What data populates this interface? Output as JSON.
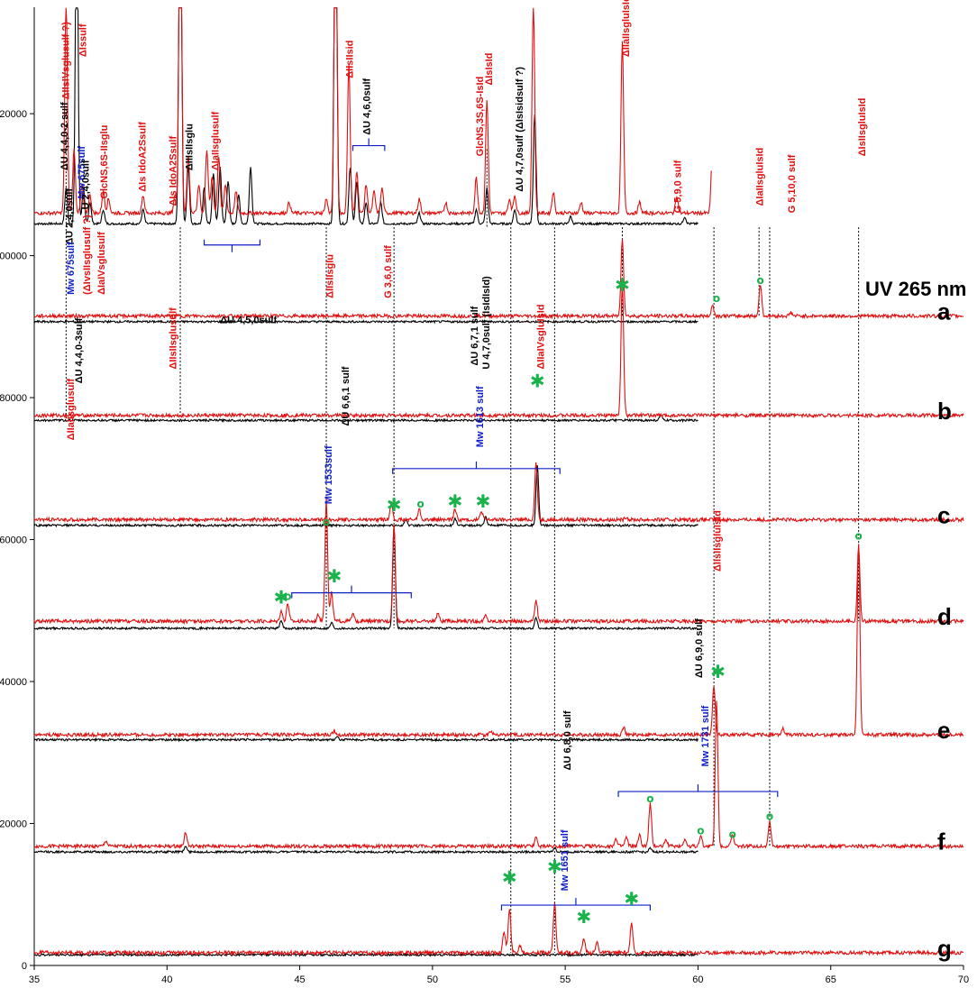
{
  "chart_data": {
    "type": "line",
    "xlim": [
      35,
      70
    ],
    "ylim": [
      0,
      135000
    ],
    "x_ticks": [
      35,
      40,
      45,
      50,
      55,
      60,
      65,
      70
    ],
    "y_ticks": [
      0,
      20000,
      40000,
      60000,
      80000,
      100000,
      120000
    ],
    "x_tick_labels": [
      "35",
      "40",
      "45",
      "50",
      "55",
      "60",
      "65",
      "70"
    ],
    "y_tick_labels": [
      "0",
      "20000",
      "40000",
      "60000",
      "80000",
      "100000",
      "120000"
    ],
    "uv_label": "UV 265 nm",
    "colors": {
      "red_trace": "#e01010",
      "black_trace": "#000000",
      "blue_annotation": "#1020c8",
      "marker": "#19b24b"
    },
    "traces": [
      {
        "label": "",
        "red_baseline": 106000,
        "black_baseline": 104500,
        "red_end": 60.5,
        "black_end": 60.0,
        "red_peaks": [
          [
            36.2,
            30000
          ],
          [
            36.5,
            9000
          ],
          [
            36.8,
            4000
          ],
          [
            37.1,
            2500
          ],
          [
            37.6,
            3000
          ],
          [
            37.8,
            2000
          ],
          [
            39.1,
            2500
          ],
          [
            40.3,
            2500
          ],
          [
            40.5,
            60000
          ],
          [
            40.8,
            8000
          ],
          [
            41.2,
            4000
          ],
          [
            41.5,
            9000
          ],
          [
            41.7,
            5000
          ],
          [
            41.95,
            8000
          ],
          [
            42.2,
            4000
          ],
          [
            42.6,
            3000
          ],
          [
            44.6,
            1500
          ],
          [
            46.0,
            2000
          ],
          [
            46.35,
            60000
          ],
          [
            46.85,
            21000
          ],
          [
            47.15,
            6000
          ],
          [
            47.5,
            4000
          ],
          [
            47.8,
            3000
          ],
          [
            48.1,
            3500
          ],
          [
            49.5,
            2000
          ],
          [
            50.5,
            1500
          ],
          [
            51.65,
            5000
          ],
          [
            52.05,
            16000
          ],
          [
            52.9,
            2000
          ],
          [
            53.1,
            2500
          ],
          [
            53.8,
            30000
          ],
          [
            54.55,
            3000
          ],
          [
            55.6,
            1500
          ],
          [
            57.15,
            24000
          ],
          [
            57.8,
            1500
          ],
          [
            59.2,
            2500
          ],
          [
            60.55,
            5000
          ]
        ],
        "black_peaks": [
          [
            36.2,
            5000
          ],
          [
            36.6,
            50000
          ],
          [
            36.85,
            5000
          ],
          [
            37.1,
            3000
          ],
          [
            37.6,
            2000
          ],
          [
            39.1,
            2000
          ],
          [
            40.5,
            60000
          ],
          [
            40.8,
            8000
          ],
          [
            41.4,
            5000
          ],
          [
            41.75,
            7000
          ],
          [
            42.0,
            8000
          ],
          [
            42.3,
            6000
          ],
          [
            42.7,
            4000
          ],
          [
            43.15,
            8000
          ],
          [
            46.35,
            60000
          ],
          [
            46.9,
            8000
          ],
          [
            47.15,
            6000
          ],
          [
            47.5,
            3000
          ],
          [
            48.05,
            3000
          ],
          [
            49.5,
            1500
          ],
          [
            51.65,
            2000
          ],
          [
            52.05,
            5000
          ],
          [
            53.1,
            2000
          ],
          [
            53.85,
            15500
          ],
          [
            55.2,
            1000
          ],
          [
            59.5,
            1000
          ]
        ],
        "tail_peaks": [
          [
            60.55,
            5000
          ],
          [
            62.3,
            1500
          ],
          [
            62.6,
            2000
          ],
          [
            63.5,
            1200
          ],
          [
            66.05,
            7500
          ],
          [
            69.0,
            1000
          ]
        ]
      },
      {
        "label": "a",
        "red_baseline": 91500,
        "black_baseline": 90700,
        "red_end": 70,
        "black_end": 60.0,
        "red_peaks": [
          [
            57.15,
            11000
          ],
          [
            60.55,
            1500
          ],
          [
            62.35,
            4500
          ],
          [
            63.5,
            500
          ]
        ],
        "black_peaks": []
      },
      {
        "label": "b",
        "red_baseline": 77500,
        "black_baseline": 76800,
        "red_end": 70,
        "black_end": 60.0,
        "red_peaks": [
          [
            57.15,
            18500
          ]
        ],
        "black_peaks": [
          [
            58.6,
            700
          ]
        ]
      },
      {
        "label": "c",
        "red_baseline": 62800,
        "black_baseline": 62000,
        "red_end": 70,
        "black_end": 60.0,
        "red_peaks": [
          [
            48.45,
            2500
          ],
          [
            49.5,
            1500
          ],
          [
            50.85,
            1500
          ],
          [
            51.85,
            1200
          ],
          [
            53.9,
            8000
          ],
          [
            57.3,
            400
          ]
        ],
        "black_peaks": [
          [
            49.0,
            800
          ],
          [
            50.85,
            900
          ],
          [
            52.0,
            1200
          ],
          [
            53.95,
            8500
          ]
        ]
      },
      {
        "label": "d",
        "red_baseline": 48500,
        "black_baseline": 47500,
        "red_end": 70,
        "black_end": 60.0,
        "red_peaks": [
          [
            44.3,
            1500
          ],
          [
            44.55,
            2500
          ],
          [
            45.7,
            1000
          ],
          [
            46.0,
            17000
          ],
          [
            46.2,
            4000
          ],
          [
            47.0,
            1000
          ],
          [
            48.55,
            13500
          ],
          [
            50.2,
            1200
          ],
          [
            52.0,
            800
          ],
          [
            53.9,
            3000
          ],
          [
            66.05,
            10500
          ]
        ],
        "black_peaks": [
          [
            44.3,
            1000
          ],
          [
            46.2,
            800
          ],
          [
            48.55,
            14500
          ],
          [
            53.9,
            1500
          ]
        ]
      },
      {
        "label": "e",
        "red_baseline": 32500,
        "black_baseline": 31800,
        "red_end": 70,
        "black_end": 60.0,
        "red_peaks": [
          [
            46.3,
            600
          ],
          [
            52.2,
            600
          ],
          [
            57.2,
            1000
          ],
          [
            60.6,
            7000
          ],
          [
            63.2,
            800
          ],
          [
            66.05,
            27000
          ]
        ],
        "black_peaks": [
          [
            46.4,
            500
          ]
        ]
      },
      {
        "label": "f",
        "red_baseline": 16800,
        "black_baseline": 16000,
        "red_end": 70,
        "black_end": 60.0,
        "red_peaks": [
          [
            37.7,
            800
          ],
          [
            40.7,
            2000
          ],
          [
            53.9,
            1200
          ],
          [
            56.9,
            1000
          ],
          [
            57.3,
            1200
          ],
          [
            57.8,
            1500
          ],
          [
            58.2,
            6000
          ],
          [
            58.8,
            1000
          ],
          [
            59.5,
            1000
          ],
          [
            60.1,
            1500
          ],
          [
            60.7,
            20500
          ],
          [
            61.3,
            1500
          ],
          [
            62.7,
            3500
          ]
        ],
        "black_peaks": [
          [
            40.7,
            800
          ],
          [
            54.6,
            600
          ],
          [
            58.2,
            500
          ]
        ]
      },
      {
        "label": "g",
        "red_baseline": 1800,
        "black_baseline": 1500,
        "red_end": 70,
        "black_end": 60.0,
        "red_peaks": [
          [
            52.7,
            3000
          ],
          [
            52.9,
            6000
          ],
          [
            53.3,
            1000
          ],
          [
            54.6,
            7000
          ],
          [
            55.7,
            2000
          ],
          [
            56.2,
            1500
          ],
          [
            57.5,
            4000
          ]
        ],
        "black_peaks": []
      }
    ],
    "dashed_lines": [
      {
        "x": 36.2,
        "y_top": 120000,
        "y_bottom": 77000
      },
      {
        "x": 40.5,
        "y_top": 104000,
        "y_bottom": 77000
      },
      {
        "x": 46.0,
        "y_top": 104000,
        "y_bottom": 47500
      },
      {
        "x": 48.55,
        "y_top": 104000,
        "y_bottom": 47500
      },
      {
        "x": 52.05,
        "y_top": 115000,
        "y_bottom": 104000
      },
      {
        "x": 52.95,
        "y_top": 104000,
        "y_bottom": 1800
      },
      {
        "x": 54.6,
        "y_top": 104000,
        "y_bottom": 1800
      },
      {
        "x": 57.15,
        "y_top": 104000,
        "y_bottom": 91500
      },
      {
        "x": 60.6,
        "y_top": 104000,
        "y_bottom": 16800
      },
      {
        "x": 62.3,
        "y_top": 104000,
        "y_bottom": 91500
      },
      {
        "x": 62.7,
        "y_top": 104000,
        "y_bottom": 16800
      },
      {
        "x": 66.05,
        "y_top": 104000,
        "y_bottom": 48500
      }
    ],
    "brackets": [
      {
        "x1": 41.4,
        "x2": 43.5,
        "y": 101500,
        "dir": "down"
      },
      {
        "x1": 47.0,
        "x2": 48.2,
        "y": 115500,
        "dir": "up"
      },
      {
        "x1": 48.5,
        "x2": 54.8,
        "y": 70000,
        "dir": "up"
      },
      {
        "x1": 44.7,
        "x2": 49.2,
        "y": 52500,
        "dir": "up"
      },
      {
        "x1": 57.0,
        "x2": 63.0,
        "y": 24500,
        "dir": "up"
      },
      {
        "x1": 52.6,
        "x2": 58.2,
        "y": 8500,
        "dir": "up"
      }
    ],
    "markers": [
      {
        "type": "star",
        "x": 57.15,
        "y": 95000
      },
      {
        "type": "o",
        "x": 60.7,
        "y": 93500
      },
      {
        "type": "o",
        "x": 62.35,
        "y": 96000
      },
      {
        "type": "star",
        "x": 53.95,
        "y": 81500
      },
      {
        "type": "o",
        "x": 46.0,
        "y": 62000
      },
      {
        "type": "star",
        "x": 48.55,
        "y": 64000
      },
      {
        "type": "o",
        "x": 49.55,
        "y": 64500
      },
      {
        "type": "star",
        "x": 50.85,
        "y": 64500
      },
      {
        "type": "star",
        "x": 51.9,
        "y": 64500
      },
      {
        "type": "star",
        "x": 44.3,
        "y": 51000
      },
      {
        "type": "o",
        "x": 44.55,
        "y": 51500
      },
      {
        "type": "star",
        "x": 46.3,
        "y": 54000
      },
      {
        "type": "o",
        "x": 66.05,
        "y": 60000
      },
      {
        "type": "star",
        "x": 60.75,
        "y": 40500
      },
      {
        "type": "o",
        "x": 58.2,
        "y": 23000
      },
      {
        "type": "o",
        "x": 60.1,
        "y": 18500
      },
      {
        "type": "o",
        "x": 61.3,
        "y": 18000
      },
      {
        "type": "o",
        "x": 62.7,
        "y": 20500
      },
      {
        "type": "star",
        "x": 52.9,
        "y": 11500
      },
      {
        "type": "star",
        "x": 54.6,
        "y": 13000
      },
      {
        "type": "star",
        "x": 55.7,
        "y": 6000
      },
      {
        "type": "star",
        "x": 57.5,
        "y": 8500
      }
    ],
    "annotations": [
      {
        "text": "ΔIIsIVsglusulf ?)",
        "color": "red",
        "x": 36.3,
        "y": 122000,
        "rot": -90
      },
      {
        "text": "ΔIssulf",
        "color": "red",
        "x": 36.95,
        "y": 128000,
        "rot": -90
      },
      {
        "text": "ΔU 4,4,0-2 sulf",
        "color": "black",
        "x": 36.25,
        "y": 112000,
        "rot": -90
      },
      {
        "text": "Mw 675sulf",
        "color": "blue",
        "x": 36.9,
        "y": 108000,
        "rot": -90
      },
      {
        "text": "U 2,4,0sulf",
        "color": "black",
        "x": 37.05,
        "y": 106500,
        "rot": -90
      },
      {
        "text": "GlcNS,6S-IIsglu",
        "color": "red",
        "x": 37.75,
        "y": 108000,
        "rot": -90
      },
      {
        "text": "ΔIs IdoA2Ssulf",
        "color": "red",
        "x": 39.2,
        "y": 109000,
        "rot": -90
      },
      {
        "text": "ΔIs IdoA2Ssulf",
        "color": "red",
        "x": 40.35,
        "y": 107000,
        "rot": -90
      },
      {
        "text": "ΔIIIsIIsglu",
        "color": "black",
        "x": 40.95,
        "y": 112000,
        "rot": -90
      },
      {
        "text": "ΔIaIIsglusulf",
        "color": "red",
        "x": 41.95,
        "y": 112000,
        "rot": -90
      },
      {
        "text": "ΔIIsIIsid",
        "color": "red",
        "x": 47.0,
        "y": 125000,
        "rot": -90
      },
      {
        "text": "ΔU 4,6,0sulf",
        "color": "black",
        "x": 47.65,
        "y": 117000,
        "rot": -90
      },
      {
        "text": "GlcNS,3S,6S-IsId",
        "color": "red",
        "x": 51.9,
        "y": 114000,
        "rot": -90
      },
      {
        "text": "ΔIsIsId",
        "color": "red",
        "x": 52.25,
        "y": 124000,
        "rot": -90
      },
      {
        "text": "ΔU 4,7,0sulf (ΔIsIsidsulf ?)",
        "color": "black",
        "x": 53.4,
        "y": 109000,
        "rot": -90
      },
      {
        "text": "ΔIIaIIsgluIsId",
        "color": "red",
        "x": 57.4,
        "y": 128000,
        "rot": -90
      },
      {
        "text": "G 5,9,0 sulf",
        "color": "red",
        "x": 59.35,
        "y": 106000,
        "rot": -90
      },
      {
        "text": "ΔIaIIsgluIsId",
        "color": "red",
        "x": 62.45,
        "y": 107000,
        "rot": -90
      },
      {
        "text": "G 5,10,0 sulf",
        "color": "red",
        "x": 63.65,
        "y": 106000,
        "rot": -90
      },
      {
        "text": "ΔIsIIsgluIsId",
        "color": "red",
        "x": 66.3,
        "y": 114000,
        "rot": -90
      },
      {
        "text": "ΔU 2,4,0sulf",
        "color": "black",
        "x": 36.45,
        "y": 101500,
        "rot": -90
      },
      {
        "text": "Mw 675sulf",
        "color": "blue",
        "x": 36.5,
        "y": 94500,
        "rot": -90
      },
      {
        "text": "(ΔIvsIIsglusulf ?)",
        "color": "red",
        "x": 37.1,
        "y": 94500,
        "rot": -90
      },
      {
        "text": "ΔIaIVsglusulf",
        "color": "red",
        "x": 37.65,
        "y": 94500,
        "rot": -90
      },
      {
        "text": "ΔIIsIIsglu",
        "color": "red",
        "x": 46.25,
        "y": 94000,
        "rot": -90
      },
      {
        "text": "G 3,6,0 sulf",
        "color": "red",
        "x": 48.45,
        "y": 94000,
        "rot": -90
      },
      {
        "text": "ΔU 4,5,0sulf",
        "color": "black",
        "x": 42.0,
        "y": 90500,
        "rot": 0
      },
      {
        "text": "ΔU 6,7,1 sulf",
        "color": "black",
        "x": 51.7,
        "y": 84500,
        "rot": -90
      },
      {
        "text": "U 4,7,0sulf (IsIdIsId)",
        "color": "black",
        "x": 52.15,
        "y": 84000,
        "rot": -90
      },
      {
        "text": "ΔIIaIVsgluIsId",
        "color": "red",
        "x": 54.2,
        "y": 84000,
        "rot": -90
      },
      {
        "text": "ΔU 4,4,0-3sulf",
        "color": "black",
        "x": 36.8,
        "y": 82000,
        "rot": -90
      },
      {
        "text": "ΔIIsIIsglusulf",
        "color": "red",
        "x": 40.35,
        "y": 84000,
        "rot": -90
      },
      {
        "text": "Mw 1613 sulf",
        "color": "blue",
        "x": 51.9,
        "y": 73000,
        "rot": -90
      },
      {
        "text": "ΔU 6,6,1 sulf",
        "color": "black",
        "x": 46.85,
        "y": 76000,
        "rot": -90
      },
      {
        "text": "Mw 1533sulf",
        "color": "blue",
        "x": 46.2,
        "y": 65000,
        "rot": -90
      },
      {
        "text": "ΔIIaIIsglusulf",
        "color": "red",
        "x": 36.5,
        "y": 74000,
        "rot": -90
      },
      {
        "text": "ΔU 6,9,0 sulf",
        "color": "black",
        "x": 60.15,
        "y": 40500,
        "rot": -90
      },
      {
        "text": "ΔIIsIIsgluIsId",
        "color": "red",
        "x": 60.85,
        "y": 55500,
        "rot": -90
      },
      {
        "text": "Mw 1731 sulf",
        "color": "blue",
        "x": 60.4,
        "y": 28000,
        "rot": -90
      },
      {
        "text": "ΔU 6,8,0 sulf",
        "color": "black",
        "x": 55.2,
        "y": 27500,
        "rot": -90
      },
      {
        "text": "Mw 1651 sulf",
        "color": "blue",
        "x": 55.1,
        "y": 10500,
        "rot": -90
      }
    ]
  }
}
